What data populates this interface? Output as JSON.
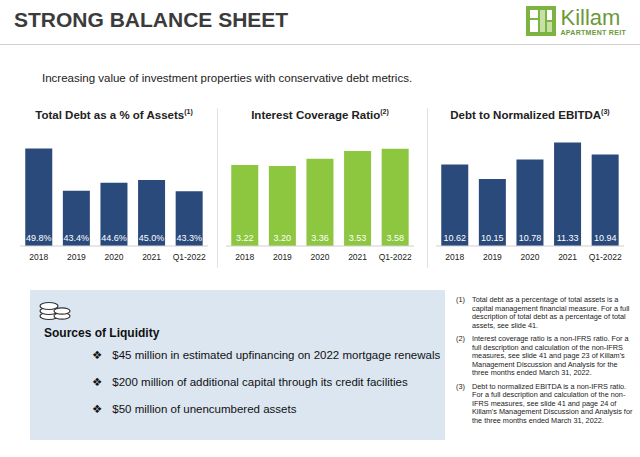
{
  "header": {
    "title": "STRONG BALANCE SHEET",
    "logo_name": "Killam",
    "logo_tagline": "APARTMENT REIT"
  },
  "subtitle": "Increasing value of investment properties with conservative debt metrics.",
  "chart_data": [
    {
      "type": "bar",
      "title": "Total Debt as a % of Assets",
      "title_note": "(1)",
      "categories": [
        "2018",
        "2019",
        "2020",
        "2021",
        "Q1-2022"
      ],
      "values": [
        49.8,
        43.4,
        44.6,
        45.0,
        43.3
      ],
      "value_labels": [
        "49.8%",
        "43.4%",
        "44.6%",
        "45.0%",
        "43.3%"
      ],
      "data_labels": true,
      "color": "#2a4a7b",
      "ylim": [
        35,
        52
      ],
      "tick_labels": "x"
    },
    {
      "type": "bar",
      "title": "Interest Coverage Ratio",
      "title_note": "(2)",
      "categories": [
        "2018",
        "2019",
        "2020",
        "2021",
        "Q1-2022"
      ],
      "values": [
        3.22,
        3.2,
        3.36,
        3.53,
        3.58
      ],
      "value_labels": [
        "3.22",
        "3.20",
        "3.36",
        "3.53",
        "3.58"
      ],
      "data_labels": true,
      "color": "#8dc63f",
      "ylim": [
        1.45,
        3.9
      ],
      "tick_labels": "x"
    },
    {
      "type": "bar",
      "title": "Debt to Normalized EBITDA",
      "title_note": "(3)",
      "categories": [
        "2018",
        "2019",
        "2020",
        "2021",
        "Q1-2022"
      ],
      "values": [
        10.62,
        10.15,
        10.78,
        11.33,
        10.94
      ],
      "value_labels": [
        "10.62",
        "10.15",
        "10.78",
        "11.33",
        "10.94"
      ],
      "data_labels": true,
      "color": "#2a4a7b",
      "ylim": [
        8,
        11.6
      ],
      "tick_labels": "x"
    }
  ],
  "liquidity": {
    "title": "Sources of Liquidity",
    "bullet": "❖",
    "items": [
      "$45 million in estimated upfinancing on 2022 mortgage renewals",
      "$200 million of additional capital through its credit facilities",
      "$50 million of unencumbered assets"
    ]
  },
  "footnotes": [
    {
      "mark": "(1)",
      "text": "Total debt as a percentage of total assets is a capital management financial measure. For a full description of total debt as a percentage of total assets, see slide 41."
    },
    {
      "mark": "(2)",
      "text": "Interest coverage ratio is a non-IFRS ratio. For a full description and calculation of the non-IFRS measures, see slide 41 and page 23 of Killam's Management Discussion and Analysis for the three months ended March 31, 2022."
    },
    {
      "mark": "(3)",
      "text": "Debt to normalized EBITDA is a non-IFRS ratio. For a full description and calculation of the non-IFRS measures, see slide 41 and page 24 of Killam's Management Discussion and Analysis for the three months ended March 31, 2022."
    }
  ]
}
